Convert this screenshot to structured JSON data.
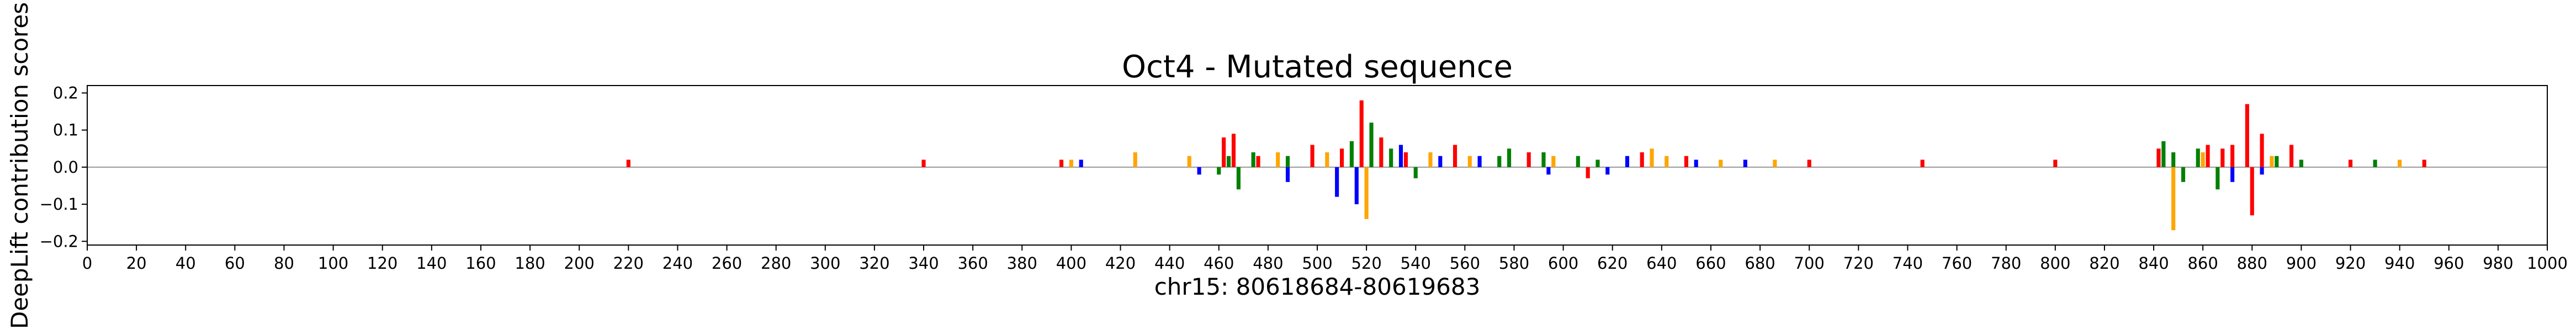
{
  "chart_data": {
    "type": "bar",
    "title": "Oct4 - Mutated sequence",
    "xlabel": "chr15: 80618684-80619683",
    "ylabel": "DeepLift contribution scores",
    "xlim": [
      0,
      1000
    ],
    "ylim": [
      -0.21,
      0.22
    ],
    "x_ticks": [
      0,
      20,
      40,
      60,
      80,
      100,
      120,
      140,
      160,
      180,
      200,
      220,
      240,
      260,
      280,
      300,
      320,
      340,
      360,
      380,
      400,
      420,
      440,
      460,
      480,
      500,
      520,
      540,
      560,
      580,
      600,
      620,
      640,
      660,
      680,
      700,
      720,
      740,
      760,
      780,
      800,
      820,
      840,
      860,
      880,
      900,
      920,
      940,
      960,
      980,
      1000
    ],
    "y_ticks": [
      -0.2,
      -0.1,
      0.0,
      0.1,
      0.2
    ],
    "y_tick_labels": [
      "−0.2",
      "−0.1",
      "0.0",
      "0.1",
      "0.2"
    ],
    "grid": false,
    "base_colors": {
      "A": "#008000",
      "C": "#0000ff",
      "G": "#ffa500",
      "T": "#ff0000"
    },
    "series": [
      {
        "base": "A",
        "values": [
          [
            460,
            -0.02
          ],
          [
            464,
            0.03
          ],
          [
            468,
            -0.06
          ],
          [
            474,
            0.04
          ],
          [
            488,
            0.03
          ],
          [
            514,
            0.07
          ],
          [
            522,
            0.12
          ],
          [
            530,
            0.05
          ],
          [
            540,
            -0.03
          ],
          [
            574,
            0.03
          ],
          [
            578,
            0.05
          ],
          [
            592,
            0.04
          ],
          [
            606,
            0.03
          ],
          [
            614,
            0.02
          ],
          [
            844,
            0.07
          ],
          [
            848,
            0.04
          ],
          [
            852,
            -0.04
          ],
          [
            858,
            0.05
          ],
          [
            866,
            -0.06
          ],
          [
            890,
            0.03
          ],
          [
            900,
            0.02
          ],
          [
            930,
            0.02
          ]
        ]
      },
      {
        "base": "C",
        "values": [
          [
            404,
            0.02
          ],
          [
            452,
            -0.02
          ],
          [
            488,
            -0.04
          ],
          [
            508,
            -0.08
          ],
          [
            516,
            -0.1
          ],
          [
            534,
            0.06
          ],
          [
            550,
            0.03
          ],
          [
            566,
            0.03
          ],
          [
            594,
            -0.02
          ],
          [
            618,
            -0.02
          ],
          [
            626,
            0.03
          ],
          [
            654,
            0.02
          ],
          [
            674,
            0.02
          ],
          [
            872,
            -0.04
          ],
          [
            884,
            -0.02
          ]
        ]
      },
      {
        "base": "G",
        "values": [
          [
            400,
            0.02
          ],
          [
            426,
            0.04
          ],
          [
            448,
            0.03
          ],
          [
            484,
            0.04
          ],
          [
            504,
            0.04
          ],
          [
            520,
            -0.14
          ],
          [
            546,
            0.04
          ],
          [
            562,
            0.03
          ],
          [
            596,
            0.03
          ],
          [
            636,
            0.05
          ],
          [
            642,
            0.03
          ],
          [
            664,
            0.02
          ],
          [
            686,
            0.02
          ],
          [
            848,
            -0.17
          ],
          [
            860,
            0.04
          ],
          [
            888,
            0.03
          ],
          [
            940,
            0.02
          ]
        ]
      },
      {
        "base": "T",
        "values": [
          [
            220,
            0.02
          ],
          [
            340,
            0.02
          ],
          [
            396,
            0.02
          ],
          [
            462,
            0.08
          ],
          [
            466,
            0.09
          ],
          [
            476,
            0.03
          ],
          [
            498,
            0.06
          ],
          [
            510,
            0.05
          ],
          [
            518,
            0.18
          ],
          [
            526,
            0.08
          ],
          [
            536,
            0.04
          ],
          [
            556,
            0.06
          ],
          [
            586,
            0.04
          ],
          [
            610,
            -0.03
          ],
          [
            632,
            0.04
          ],
          [
            650,
            0.03
          ],
          [
            700,
            0.02
          ],
          [
            746,
            0.02
          ],
          [
            800,
            0.02
          ],
          [
            842,
            0.05
          ],
          [
            862,
            0.06
          ],
          [
            868,
            0.05
          ],
          [
            872,
            0.06
          ],
          [
            878,
            0.17
          ],
          [
            880,
            -0.13
          ],
          [
            884,
            0.09
          ],
          [
            896,
            0.06
          ],
          [
            920,
            0.02
          ],
          [
            950,
            0.02
          ]
        ]
      }
    ]
  }
}
